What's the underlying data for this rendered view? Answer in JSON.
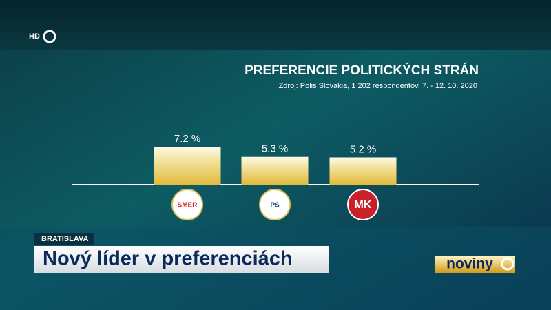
{
  "broadcast": {
    "channel_badge": "HD",
    "location": "BRATISLAVA",
    "headline": "Nový líder v preferenciách",
    "brand": "noviny"
  },
  "chart_data": {
    "type": "bar",
    "title": "PREFERENCIE POLITICKÝCH STRÁN",
    "subtitle": "Zdroj: Polis Slovakia, 1 202 respondentov, 7. - 12. 10. 2020",
    "categories": [
      "SMER",
      "PS",
      "MK"
    ],
    "values": [
      7.2,
      5.3,
      5.2
    ],
    "value_labels": [
      "7.2 %",
      "5.3 %",
      "5.2 %"
    ],
    "color": "#e2bb3c",
    "logo_colors": [
      "#d3202e",
      "#1f3f8f",
      "#c9202a"
    ]
  }
}
